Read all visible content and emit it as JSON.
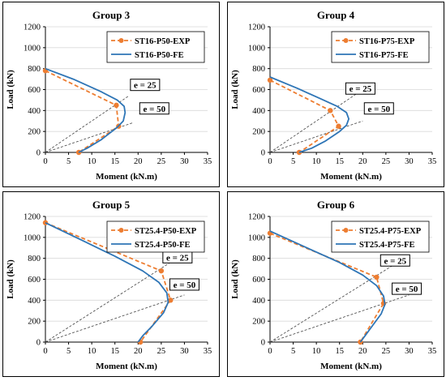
{
  "chart_data": [
    {
      "type": "line",
      "title": "Group 3",
      "xlabel": "Moment (kN.m)",
      "ylabel": "Load (kN)",
      "xlim": [
        0,
        35
      ],
      "ylim": [
        0,
        1200
      ],
      "xticks": [
        0,
        5,
        10,
        15,
        20,
        25,
        30,
        35
      ],
      "yticks": [
        0,
        200,
        400,
        600,
        800,
        1000,
        1200
      ],
      "legend_position": "top-right",
      "series": [
        {
          "name": "ST16-P50-EXP",
          "style": "dashed-marker",
          "color": "#ED7D31",
          "x": [
            0,
            15.3,
            15.8,
            7.2
          ],
          "y": [
            780,
            450,
            250,
            0
          ],
          "markers_x": [
            0,
            15.3,
            15.8,
            7.2
          ],
          "markers_y": [
            780,
            450,
            250,
            0
          ]
        },
        {
          "name": "ST16-P50-FE",
          "style": "solid",
          "color": "#2E75B6",
          "x": [
            0,
            6,
            12,
            15.5,
            17,
            17.2,
            16.8,
            15.5,
            12,
            9,
            7.2
          ],
          "y": [
            800,
            700,
            580,
            500,
            440,
            380,
            300,
            240,
            120,
            40,
            0
          ]
        }
      ],
      "eccentricity_lines": [
        {
          "label": "e = 25",
          "x": [
            0,
            18
          ],
          "y": [
            0,
            540
          ]
        },
        {
          "label": "e = 50",
          "x": [
            0,
            19
          ],
          "y": [
            0,
            285
          ]
        }
      ],
      "annotations": [
        {
          "text": "e = 25",
          "x": 21.5,
          "y": 645
        },
        {
          "text": "e = 50",
          "x": 23.5,
          "y": 420
        }
      ]
    },
    {
      "type": "line",
      "title": "Group 4",
      "xlabel": "Moment (kN.m)",
      "ylabel": "Load (kN)",
      "xlim": [
        0,
        35
      ],
      "ylim": [
        0,
        1200
      ],
      "xticks": [
        0,
        5,
        10,
        15,
        20,
        25,
        30,
        35
      ],
      "yticks": [
        0,
        200,
        400,
        600,
        800,
        1000,
        1200
      ],
      "legend_position": "top-right",
      "series": [
        {
          "name": "ST16-P75-EXP",
          "style": "dashed-marker",
          "color": "#ED7D31",
          "x": [
            0,
            13,
            14.8,
            6.3
          ],
          "y": [
            690,
            400,
            250,
            0
          ],
          "markers_x": [
            0,
            13,
            14.8,
            6.3
          ],
          "markers_y": [
            690,
            400,
            250,
            0
          ]
        },
        {
          "name": "ST16-P75-FE",
          "style": "solid",
          "color": "#2E75B6",
          "x": [
            0,
            6,
            11,
            14.5,
            16.5,
            17,
            16.5,
            15,
            12,
            9,
            6.3
          ],
          "y": [
            720,
            610,
            510,
            440,
            380,
            320,
            260,
            200,
            110,
            40,
            0
          ]
        }
      ],
      "eccentricity_lines": [
        {
          "label": "e = 25",
          "x": [
            0,
            19
          ],
          "y": [
            0,
            570
          ]
        },
        {
          "label": "e = 50",
          "x": [
            0,
            20
          ],
          "y": [
            0,
            300
          ]
        }
      ],
      "annotations": [
        {
          "text": "e = 25",
          "x": 19.5,
          "y": 610
        },
        {
          "text": "e = 50",
          "x": 23.5,
          "y": 420
        }
      ]
    },
    {
      "type": "line",
      "title": "Group 5",
      "xlabel": "Moment (kN.m)",
      "ylabel": "Load (kN)",
      "xlim": [
        0,
        35
      ],
      "ylim": [
        0,
        1200
      ],
      "xticks": [
        0,
        5,
        10,
        15,
        20,
        25,
        30,
        35
      ],
      "yticks": [
        0,
        200,
        400,
        600,
        800,
        1000,
        1200
      ],
      "legend_position": "top-right",
      "series": [
        {
          "name": "ST25.4-P50-EXP",
          "style": "dashed-marker",
          "color": "#ED7D31",
          "x": [
            0,
            25,
            27,
            20.5
          ],
          "y": [
            1140,
            680,
            400,
            0
          ],
          "markers_x": [
            0,
            25,
            27,
            20.5
          ],
          "markers_y": [
            1140,
            680,
            400,
            0
          ]
        },
        {
          "name": "ST25.4-P50-FE",
          "style": "solid",
          "color": "#2E75B6",
          "x": [
            0,
            8,
            15,
            21,
            24.5,
            26.2,
            26.5,
            25.5,
            23,
            21,
            20
          ],
          "y": [
            1140,
            970,
            820,
            680,
            570,
            470,
            380,
            280,
            150,
            60,
            0
          ]
        }
      ],
      "eccentricity_lines": [
        {
          "label": "e = 25",
          "x": [
            0,
            28
          ],
          "y": [
            0,
            790
          ]
        },
        {
          "label": "e = 50",
          "x": [
            0,
            30
          ],
          "y": [
            0,
            450
          ]
        }
      ],
      "annotations": [
        {
          "text": "e = 25",
          "x": 28.5,
          "y": 810
        },
        {
          "text": "e = 50",
          "x": 30,
          "y": 550
        }
      ]
    },
    {
      "type": "line",
      "title": "Group 6",
      "xlabel": "Moment (kN.m)",
      "ylabel": "Load (kN)",
      "xlim": [
        0,
        35
      ],
      "ylim": [
        0,
        1200
      ],
      "xticks": [
        0,
        5,
        10,
        15,
        20,
        25,
        30,
        35
      ],
      "yticks": [
        0,
        200,
        400,
        600,
        800,
        1000,
        1200
      ],
      "legend_position": "top-right",
      "series": [
        {
          "name": "ST25.4-P75-EXP",
          "style": "dashed-marker",
          "color": "#ED7D31",
          "x": [
            0,
            23,
            24.5,
            19.5
          ],
          "y": [
            1040,
            620,
            370,
            0
          ],
          "markers_x": [
            0,
            23,
            24.5,
            19.5
          ],
          "markers_y": [
            1040,
            620,
            370,
            0
          ]
        },
        {
          "name": "ST25.4-P75-FE",
          "style": "solid",
          "color": "#2E75B6",
          "x": [
            0,
            8,
            15,
            20,
            23,
            24.5,
            24.8,
            24,
            22,
            20.5,
            19.5
          ],
          "y": [
            1060,
            900,
            760,
            640,
            540,
            440,
            360,
            270,
            150,
            60,
            0
          ]
        }
      ],
      "eccentricity_lines": [
        {
          "label": "e = 25",
          "x": [
            0,
            27.5
          ],
          "y": [
            0,
            760
          ]
        },
        {
          "label": "e = 50",
          "x": [
            0,
            30
          ],
          "y": [
            0,
            450
          ]
        }
      ],
      "annotations": [
        {
          "text": "e = 25",
          "x": 27,
          "y": 780
        },
        {
          "text": "e = 50",
          "x": 29.5,
          "y": 510
        }
      ]
    }
  ]
}
